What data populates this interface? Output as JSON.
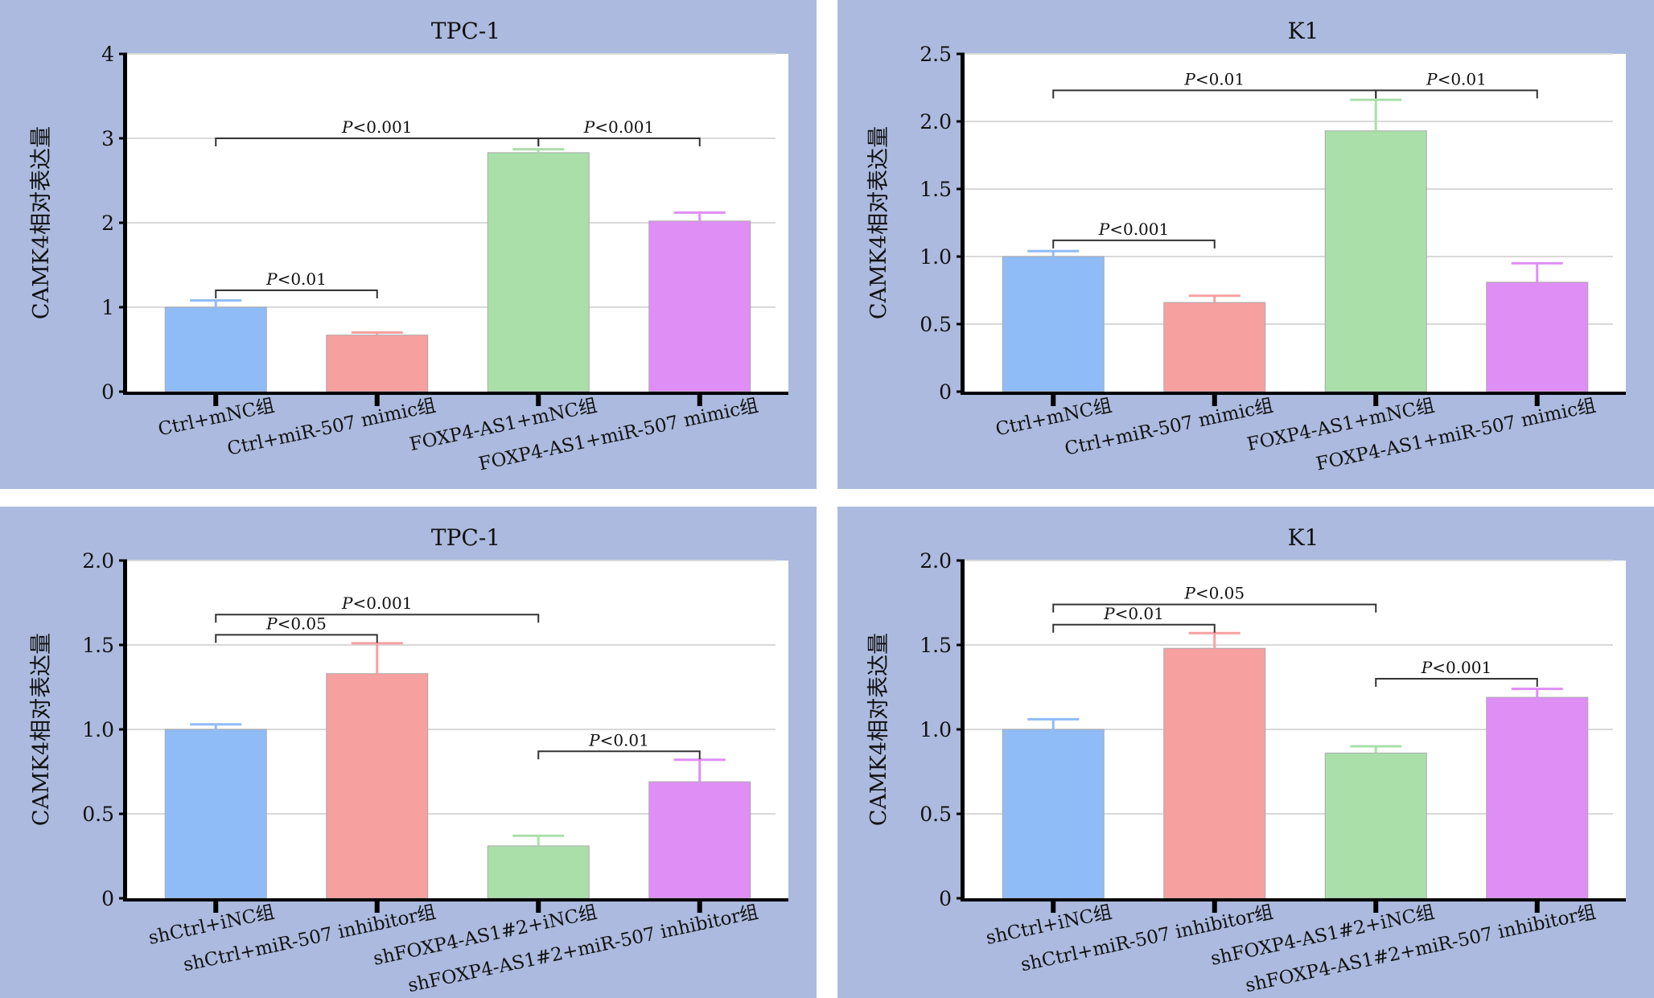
{
  "colors": {
    "background": "#abbade",
    "plot_area": "#ffffff",
    "grid": "#d9d9d9",
    "axis": "#000000"
  },
  "chart_data": [
    {
      "type": "bar",
      "title": "TPC-1",
      "ylabel": "CAMK4相对表达量",
      "ylim": [
        0,
        4
      ],
      "yticks": [
        "0",
        "1",
        "2",
        "3",
        "4"
      ],
      "categories": [
        "Ctrl+mNC组",
        "Ctrl+miR-507 mimic组",
        "FOXP4-AS1+mNC组",
        "FOXP4-AS1+miR-507 mimic组"
      ],
      "values": [
        1.0,
        0.67,
        2.83,
        2.02
      ],
      "errors": [
        0.08,
        0.03,
        0.04,
        0.1
      ],
      "bar_colors": [
        "#8fbcf7",
        "#f7a0a0",
        "#aadfaa",
        "#df8ef6"
      ],
      "grid": true,
      "significance": [
        {
          "from": 0,
          "to": 1,
          "y": 1.2,
          "label": "P<0.01"
        },
        {
          "from": 0,
          "to": 2,
          "y": 3.0,
          "label": "P<0.001"
        },
        {
          "from": 2,
          "to": 3,
          "y": 3.0,
          "label": "P<0.001"
        }
      ]
    },
    {
      "type": "bar",
      "title": "K1",
      "ylabel": "CAMK4相对表达量",
      "ylim": [
        0,
        2.5
      ],
      "yticks": [
        "0",
        "0.5",
        "1.0",
        "1.5",
        "2.0",
        "2.5"
      ],
      "categories": [
        "Ctrl+mNC组",
        "Ctrl+miR-507 mimic组",
        "FOXP4-AS1+mNC组",
        "FOXP4-AS1+miR-507 mimic组"
      ],
      "values": [
        1.0,
        0.66,
        1.93,
        0.81
      ],
      "errors": [
        0.04,
        0.05,
        0.23,
        0.14
      ],
      "bar_colors": [
        "#8fbcf7",
        "#f7a0a0",
        "#aadfaa",
        "#df8ef6"
      ],
      "grid": true,
      "significance": [
        {
          "from": 0,
          "to": 1,
          "y": 1.12,
          "label": "P<0.001"
        },
        {
          "from": 0,
          "to": 2,
          "y": 2.23,
          "label": "P<0.01"
        },
        {
          "from": 2,
          "to": 3,
          "y": 2.23,
          "label": "P<0.01"
        }
      ]
    },
    {
      "type": "bar",
      "title": "TPC-1",
      "ylabel": "CAMK4相对表达量",
      "ylim": [
        0,
        2.0
      ],
      "yticks": [
        "0",
        "0.5",
        "1.0",
        "1.5",
        "2.0"
      ],
      "categories": [
        "shCtrl+iNC组",
        "shCtrl+miR-507 inhibitor组",
        "shFOXP4-AS1#2+iNC组",
        "shFOXP4-AS1#2+miR-507 inhibitor组"
      ],
      "values": [
        1.0,
        1.33,
        0.31,
        0.69
      ],
      "errors": [
        0.03,
        0.18,
        0.06,
        0.13
      ],
      "bar_colors": [
        "#8fbcf7",
        "#f7a0a0",
        "#aadfaa",
        "#df8ef6"
      ],
      "grid": true,
      "significance": [
        {
          "from": 0,
          "to": 1,
          "y": 1.56,
          "label": "P<0.05"
        },
        {
          "from": 0,
          "to": 2,
          "y": 1.68,
          "label": "P<0.001"
        },
        {
          "from": 2,
          "to": 3,
          "y": 0.87,
          "label": "P<0.01"
        }
      ]
    },
    {
      "type": "bar",
      "title": "K1",
      "ylabel": "CAMK4相对表达量",
      "ylim": [
        0,
        2.0
      ],
      "yticks": [
        "0",
        "0.5",
        "1.0",
        "1.5",
        "2.0"
      ],
      "categories": [
        "shCtrl+iNC组",
        "shCtrl+miR-507 inhibitor组",
        "shFOXP4-AS1#2+iNC组",
        "shFOXP4-AS1#2+miR-507 inhibitor组"
      ],
      "values": [
        1.0,
        1.48,
        0.86,
        1.19
      ],
      "errors": [
        0.06,
        0.09,
        0.04,
        0.05
      ],
      "bar_colors": [
        "#8fbcf7",
        "#f7a0a0",
        "#aadfaa",
        "#df8ef6"
      ],
      "grid": true,
      "significance": [
        {
          "from": 0,
          "to": 1,
          "y": 1.62,
          "label": "P<0.01"
        },
        {
          "from": 0,
          "to": 2,
          "y": 1.74,
          "label": "P<0.05"
        },
        {
          "from": 2,
          "to": 3,
          "y": 1.3,
          "label": "P<0.001"
        }
      ]
    }
  ]
}
